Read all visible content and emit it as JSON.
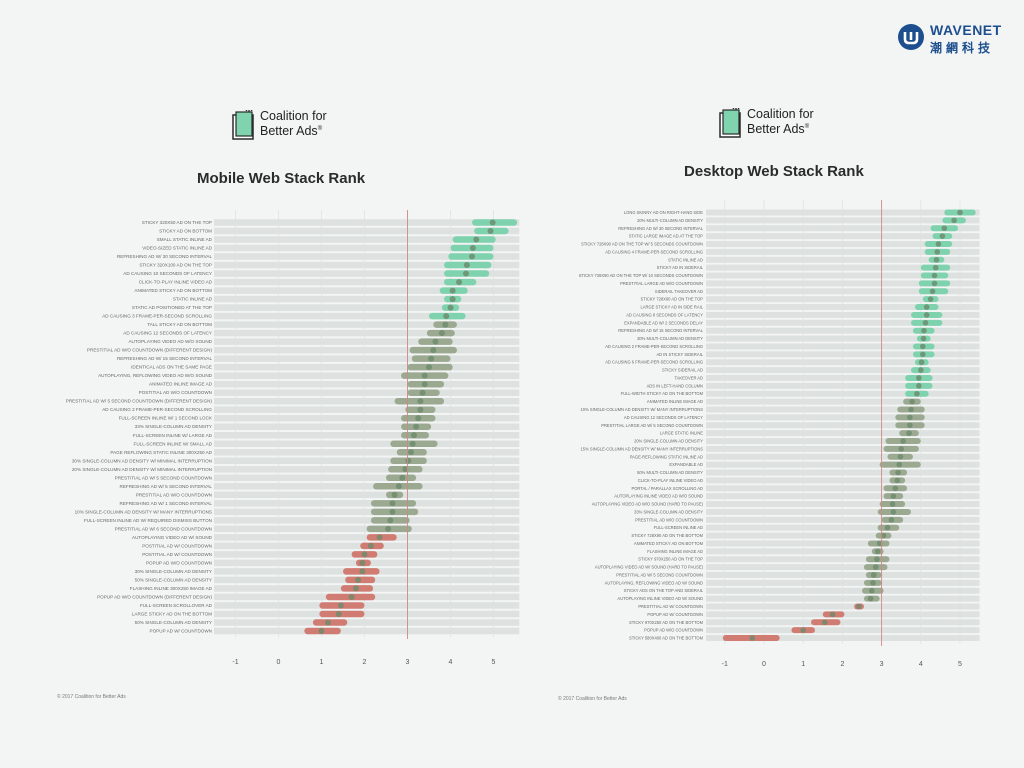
{
  "brand": {
    "name": "WAVENET",
    "sub": "潮網科技",
    "color": "#1d4f8f"
  },
  "colors": {
    "positive": "#6ecfa4",
    "neutral": "#8f9f82",
    "negative": "#cf6a5e",
    "track": "#dde1e0",
    "threshold_line": "#cf8a84",
    "dot": "#6b8a6b"
  },
  "logo": {
    "line1": "Coalition for",
    "line2": "Better Ads",
    "mark": "®"
  },
  "copyright": "© 2017 Coalition for Better Ads",
  "chart_data": [
    {
      "type": "dot-range",
      "title": "Mobile Web Stack Rank",
      "xlim": [
        -1.5,
        5.6
      ],
      "xticks": [
        -1,
        0,
        1,
        2,
        3,
        4,
        5
      ],
      "threshold": 3,
      "grid": true,
      "rows": [
        {
          "label": "STICKY 320X50 AD ON THE TOP",
          "lo": 4.5,
          "hi": 5.55,
          "mean": 4.98
        },
        {
          "label": "STICKY AD ON BOTTOM",
          "lo": 4.55,
          "hi": 5.35,
          "mean": 4.93
        },
        {
          "label": "SMALL STATIC INLINE AD",
          "lo": 4.05,
          "hi": 5.05,
          "mean": 4.6
        },
        {
          "label": "VIDEO-SIZED STATIC INLINE AD",
          "lo": 4.0,
          "hi": 5.0,
          "mean": 4.52
        },
        {
          "label": "REFRESHING AD W/ 30 SECOND INTERVAL",
          "lo": 3.95,
          "hi": 5.0,
          "mean": 4.5
        },
        {
          "label": "STICKY 320X100 AD ON THE TOP",
          "lo": 3.85,
          "hi": 4.95,
          "mean": 4.38
        },
        {
          "label": "AD CAUSING 10 SECONDS OF LATENCY",
          "lo": 3.85,
          "hi": 4.9,
          "mean": 4.36
        },
        {
          "label": "CLICK-TO-PLAY INLINE VIDEO AD",
          "lo": 3.85,
          "hi": 4.6,
          "mean": 4.2
        },
        {
          "label": "ANIMATED STICKY AD ON BOTTOM",
          "lo": 3.75,
          "hi": 4.4,
          "mean": 4.05
        },
        {
          "label": "STATIC INLINE AD",
          "lo": 3.85,
          "hi": 4.25,
          "mean": 4.05
        },
        {
          "label": "STATIC AD POSITIONED AT THE TOP",
          "lo": 3.8,
          "hi": 4.2,
          "mean": 4.0
        },
        {
          "label": "AD CAUSING 3 FRAME-PER-SECOND SCROLLING",
          "lo": 3.5,
          "hi": 4.35,
          "mean": 3.9
        },
        {
          "label": "TALL STICKY AD ON BOTTOM",
          "lo": 3.6,
          "hi": 4.15,
          "mean": 3.88
        },
        {
          "label": "AD CAUSING 12 SECONDS OF LATENCY",
          "lo": 3.45,
          "hi": 4.1,
          "mean": 3.8
        },
        {
          "label": "AUTOPLAYING VIDEO AD W/O SOUND",
          "lo": 3.25,
          "hi": 4.05,
          "mean": 3.65
        },
        {
          "label": "PRESTITIAL AD W/O COUNTDOWN (DIFFERENT DESIGN)",
          "lo": 3.05,
          "hi": 4.15,
          "mean": 3.6
        },
        {
          "label": "REFRESHING AD W/ 15 SECOND INTERVAL",
          "lo": 3.1,
          "hi": 4.0,
          "mean": 3.55
        },
        {
          "label": "IDENTICAL ADS ON THE SAME PAGE",
          "lo": 3.0,
          "hi": 4.05,
          "mean": 3.5
        },
        {
          "label": "AUTOPLAYING, REFLOWING VIDEO AD W/O SOUND",
          "lo": 2.85,
          "hi": 3.95,
          "mean": 3.4
        },
        {
          "label": "ANIMATED INLINE IMAGE AD",
          "lo": 3.0,
          "hi": 3.85,
          "mean": 3.4
        },
        {
          "label": "POSTITIAL AD W/O COUNTDOWN",
          "lo": 3.0,
          "hi": 3.75,
          "mean": 3.35
        },
        {
          "label": "PRESTITIAL AD W/ 5 SECOND COUNTDOWN (DIFFERENT DESIGN)",
          "lo": 2.7,
          "hi": 3.85,
          "mean": 3.3
        },
        {
          "label": "AD CAUSING 2 FRAME-PER-SECOND SCROLLING",
          "lo": 2.95,
          "hi": 3.65,
          "mean": 3.3
        },
        {
          "label": "FULL-SCREEN INLINE W/ 1 SECOND LOCK",
          "lo": 2.85,
          "hi": 3.65,
          "mean": 3.25
        },
        {
          "label": "33% SINGLE-COLUMN AD DENSITY",
          "lo": 2.85,
          "hi": 3.55,
          "mean": 3.2
        },
        {
          "label": "FULL-SCREEN INLINE W/ LARGE AD",
          "lo": 2.85,
          "hi": 3.5,
          "mean": 3.15
        },
        {
          "label": "FULL-SCREEN INLINE W/ SMALL AD",
          "lo": 2.6,
          "hi": 3.7,
          "mean": 3.12
        },
        {
          "label": "PAGE REFLOWING STATIC INLINE 300X250 AD",
          "lo": 2.75,
          "hi": 3.45,
          "mean": 3.08
        },
        {
          "label": "30% SINGLE-COLUMN AD DENSITY W/ MINIMAL INTERRUPTION",
          "lo": 2.6,
          "hi": 3.45,
          "mean": 3.02
        },
        {
          "label": "20% SINGLE-COLUMN AD DENSITY W/ MINIMAL INTERRUPTION",
          "lo": 2.55,
          "hi": 3.35,
          "mean": 2.95
        },
        {
          "label": "PRESTITIAL AD W/ 5 SECOND COUNTDOWN",
          "lo": 2.5,
          "hi": 3.2,
          "mean": 2.88
        },
        {
          "label": "REFRESHING AD W/ 5 SECOND INTERVAL",
          "lo": 2.2,
          "hi": 3.35,
          "mean": 2.8
        },
        {
          "label": "PRESTITIAL AD W/O COUNTDOWN",
          "lo": 2.5,
          "hi": 2.9,
          "mean": 2.7
        },
        {
          "label": "REFRESHING AD W/ 1 SECOND INTERVAL",
          "lo": 2.15,
          "hi": 3.2,
          "mean": 2.65
        },
        {
          "label": "10% SINGLE-COLUMN AD DENSITY W/ MANY INTERRUPTIONS",
          "lo": 2.15,
          "hi": 3.25,
          "mean": 2.65
        },
        {
          "label": "FULL-SCREEN INLINE AD W/ REQUIRED DISMISS BUTTON",
          "lo": 2.15,
          "hi": 3.05,
          "mean": 2.6
        },
        {
          "label": "PRESTITIAL AD W/ 6 SECOND COUNTDOWN",
          "lo": 2.05,
          "hi": 3.1,
          "mean": 2.55
        },
        {
          "label": "AUTOPLAYING VIDEO AD W/ SOUND",
          "lo": 2.05,
          "hi": 2.75,
          "mean": 2.35
        },
        {
          "label": "POSTITIAL AD W/ COUNTDOWN",
          "lo": 1.9,
          "hi": 2.45,
          "mean": 2.15
        },
        {
          "label": "POSTITIAL AD W/ COUNTDOWN",
          "lo": 1.7,
          "hi": 2.3,
          "mean": 2.0
        },
        {
          "label": "POPUP AD W/O COUNTDOWN",
          "lo": 1.8,
          "hi": 2.15,
          "mean": 1.95
        },
        {
          "label": "30% SINGLE-COLUMN AD DENSITY",
          "lo": 1.5,
          "hi": 2.35,
          "mean": 1.95
        },
        {
          "label": "50% SINGLE-COLUMN AD DENSITY",
          "lo": 1.55,
          "hi": 2.25,
          "mean": 1.85
        },
        {
          "label": "FLASHING INLINE 300X250 IMAGE AD",
          "lo": 1.45,
          "hi": 2.2,
          "mean": 1.8
        },
        {
          "label": "POPUP AD W/O COUNTDOWN (DIFFERENT DESIGN)",
          "lo": 1.1,
          "hi": 2.25,
          "mean": 1.7
        },
        {
          "label": "FULL-SCREEN SCROLLOVER AD",
          "lo": 0.95,
          "hi": 2.0,
          "mean": 1.45
        },
        {
          "label": "LARGE STICKY AD ON THE BOTTOM",
          "lo": 0.95,
          "hi": 2.0,
          "mean": 1.4
        },
        {
          "label": "50% SINGLE-COLUMN AD DENSITY",
          "lo": 0.8,
          "hi": 1.6,
          "mean": 1.15
        },
        {
          "label": "POPUP AD W/ COUNTDOWN",
          "lo": 0.6,
          "hi": 1.45,
          "mean": 1.0
        }
      ]
    },
    {
      "type": "dot-range",
      "title": "Desktop Web Stack Rank",
      "xlim": [
        -1.6,
        5.5
      ],
      "xticks": [
        -1,
        0,
        1,
        2,
        3,
        4,
        5
      ],
      "threshold": 3,
      "grid": true,
      "rows": [
        {
          "label": "LONG SKINNY AD ON RIGHT-HAND SIDE",
          "lo": 4.6,
          "hi": 5.4,
          "mean": 5.0
        },
        {
          "label": "20% MULTI-COLUMN AD DENSITY",
          "lo": 4.55,
          "hi": 5.15,
          "mean": 4.85
        },
        {
          "label": "REFRESHING AD W/ 30 SECOND INTERVAL",
          "lo": 4.25,
          "hi": 4.95,
          "mean": 4.6
        },
        {
          "label": "STATIC LARGE IMAGE AD AT THE TOP",
          "lo": 4.3,
          "hi": 4.8,
          "mean": 4.55
        },
        {
          "label": "STICKY 728X90 AD ON THE TOP W/ 5 SECONDS COUNTDOWN",
          "lo": 4.1,
          "hi": 4.8,
          "mean": 4.45
        },
        {
          "label": "AD CAUSING 4 FRAME-PER-SECOND SCROLLING",
          "lo": 4.1,
          "hi": 4.75,
          "mean": 4.42
        },
        {
          "label": "STATIC INLINE AD",
          "lo": 4.2,
          "hi": 4.6,
          "mean": 4.4
        },
        {
          "label": "STICKY AD IN SIDERAIL",
          "lo": 4.0,
          "hi": 4.75,
          "mean": 4.38
        },
        {
          "label": "STICKY 728X90 AD ON THE TOP W/ 10 SECONDS COUNTDOWN",
          "lo": 4.0,
          "hi": 4.7,
          "mean": 4.35
        },
        {
          "label": "PRESTITIAL LARGE AD W/O COUNTDOWN",
          "lo": 3.95,
          "hi": 4.75,
          "mean": 4.35
        },
        {
          "label": "SIDERAIL TAKEOVER AD",
          "lo": 3.95,
          "hi": 4.7,
          "mean": 4.3
        },
        {
          "label": "STICKY 728X90 AD ON THE TOP",
          "lo": 4.05,
          "hi": 4.45,
          "mean": 4.25
        },
        {
          "label": "LARGE STICKY AD IN SIDE RAIL",
          "lo": 3.85,
          "hi": 4.45,
          "mean": 4.15
        },
        {
          "label": "AD CAUSING 8 SECONDS OF LATENCY",
          "lo": 3.75,
          "hi": 4.55,
          "mean": 4.15
        },
        {
          "label": "EXPANDABLE AD W/ 2 SECONDS DELAY",
          "lo": 3.75,
          "hi": 4.55,
          "mean": 4.12
        },
        {
          "label": "REFRESHING AD W/ 15 SECOND INTERVAL",
          "lo": 3.8,
          "hi": 4.35,
          "mean": 4.08
        },
        {
          "label": "30% MULTI-COLUMN AD DENSITY",
          "lo": 3.9,
          "hi": 4.25,
          "mean": 4.07
        },
        {
          "label": "AD CAUSING 2 FRAME-PER-SECOND SCROLLING",
          "lo": 3.8,
          "hi": 4.35,
          "mean": 4.05
        },
        {
          "label": "AD IN STICKY SIDERAIL",
          "lo": 3.8,
          "hi": 4.35,
          "mean": 4.05
        },
        {
          "label": "AD CAUSING 6 FRAME-PER-SECOND SCROLLING",
          "lo": 3.85,
          "hi": 4.2,
          "mean": 4.02
        },
        {
          "label": "STICKY SIDERAIL AD",
          "lo": 3.75,
          "hi": 4.25,
          "mean": 4.0
        },
        {
          "label": "TAKEOVER AD",
          "lo": 3.6,
          "hi": 4.3,
          "mean": 3.95
        },
        {
          "label": "ADS IN LEFT-HAND COLUMN",
          "lo": 3.6,
          "hi": 4.3,
          "mean": 3.95
        },
        {
          "label": "FULL-WIDTH STICKY AD ON THE BOTTOM",
          "lo": 3.6,
          "hi": 4.2,
          "mean": 3.9
        },
        {
          "label": "ANIMATED INLINE IMAGE AD",
          "lo": 3.55,
          "hi": 4.0,
          "mean": 3.78
        },
        {
          "label": "10% SINGLE-COLUMN AD DENSITY W/ MANY INTERRUPTIONS",
          "lo": 3.4,
          "hi": 4.1,
          "mean": 3.75
        },
        {
          "label": "AD CAUSING 12 SECONDS OF LATENCY",
          "lo": 3.35,
          "hi": 4.1,
          "mean": 3.72
        },
        {
          "label": "PRESTITIAL LARGE AD W/ 5 SECOND COUNTDOWN",
          "lo": 3.35,
          "hi": 4.1,
          "mean": 3.72
        },
        {
          "label": "LARGE STATIC INLINE",
          "lo": 3.45,
          "hi": 3.95,
          "mean": 3.7
        },
        {
          "label": "20% SINGLE-COLUMN AD DENSITY",
          "lo": 3.1,
          "hi": 4.0,
          "mean": 3.55
        },
        {
          "label": "15% SINGLE-COLUMN AD DENSITY W/ MANY INTERRUPTIONS",
          "lo": 3.05,
          "hi": 3.95,
          "mean": 3.5
        },
        {
          "label": "PAGE-REFLOWING STATIC INLINE AD",
          "lo": 3.15,
          "hi": 3.8,
          "mean": 3.48
        },
        {
          "label": "EXPANDABLE AD",
          "lo": 2.95,
          "hi": 4.0,
          "mean": 3.45
        },
        {
          "label": "50% MULTI-COLUMN AD DENSITY",
          "lo": 3.2,
          "hi": 3.65,
          "mean": 3.42
        },
        {
          "label": "CLICK-TO-PLAY INLINE VIDEO AD",
          "lo": 3.2,
          "hi": 3.6,
          "mean": 3.4
        },
        {
          "label": "PORTAL / PARALLAX SCROLLING AD",
          "lo": 3.05,
          "hi": 3.65,
          "mean": 3.35
        },
        {
          "label": "AUTOPLAYING INLINE VIDEO AD W/O SOUND",
          "lo": 3.05,
          "hi": 3.55,
          "mean": 3.3
        },
        {
          "label": "AUTOPLAYING VIDEO AD W/O SOUND (HARD TO PAUSE)",
          "lo": 2.95,
          "hi": 3.6,
          "mean": 3.28
        },
        {
          "label": "33% SINGLE-COLUMN AD DENSITY",
          "lo": 2.9,
          "hi": 3.75,
          "mean": 3.3
        },
        {
          "label": "PRESTITIAL AD W/O COUNTDOWN",
          "lo": 3.0,
          "hi": 3.55,
          "mean": 3.25
        },
        {
          "label": "FULL-SCREEN INLINE AD",
          "lo": 2.9,
          "hi": 3.45,
          "mean": 3.15
        },
        {
          "label": "STICKY 728X90 AD ON THE BOTTOM",
          "lo": 2.85,
          "hi": 3.25,
          "mean": 3.05
        },
        {
          "label": "ANIMATED STICKY AD ON BOTTOM",
          "lo": 2.65,
          "hi": 3.2,
          "mean": 2.95
        },
        {
          "label": "FLASHING INLINE IMAGE AD",
          "lo": 2.75,
          "hi": 3.05,
          "mean": 2.9
        },
        {
          "label": "STICKY 970X250 AD ON THE TOP",
          "lo": 2.6,
          "hi": 3.2,
          "mean": 2.88
        },
        {
          "label": "AUTOPLAYING VIDEO AD W/ SOUND (HARD TO PAUSE)",
          "lo": 2.55,
          "hi": 3.15,
          "mean": 2.85
        },
        {
          "label": "PRESTITIAL AD W/ 5 SECOND COUNTDOWN",
          "lo": 2.6,
          "hi": 3.0,
          "mean": 2.8
        },
        {
          "label": "AUTOPLAYING, REFLOWING VIDEO AD W/ SOUND",
          "lo": 2.55,
          "hi": 3.0,
          "mean": 2.78
        },
        {
          "label": "STICKY ADS ON THE TOP AND SIDERAIL",
          "lo": 2.5,
          "hi": 3.05,
          "mean": 2.75
        },
        {
          "label": "AUTOPLAYING INLINE VIDEO AD W/ SOUND",
          "lo": 2.55,
          "hi": 2.95,
          "mean": 2.72
        },
        {
          "label": "PRESTITIAL AD W/ COUNTDOWN",
          "lo": 2.3,
          "hi": 2.55,
          "mean": 2.42
        },
        {
          "label": "POPUP AD W/ COUNTDOWN",
          "lo": 1.5,
          "hi": 2.05,
          "mean": 1.75
        },
        {
          "label": "STICKY 970X250 AD ON THE BOTTOM",
          "lo": 1.2,
          "hi": 1.95,
          "mean": 1.55
        },
        {
          "label": "POPUP AD W/O COUNTDOWN",
          "lo": 0.7,
          "hi": 1.3,
          "mean": 1.0
        },
        {
          "label": "STICKY 580X400 AD ON THE BOTTOM",
          "lo": -1.05,
          "hi": 0.4,
          "mean": -0.3
        }
      ]
    }
  ]
}
